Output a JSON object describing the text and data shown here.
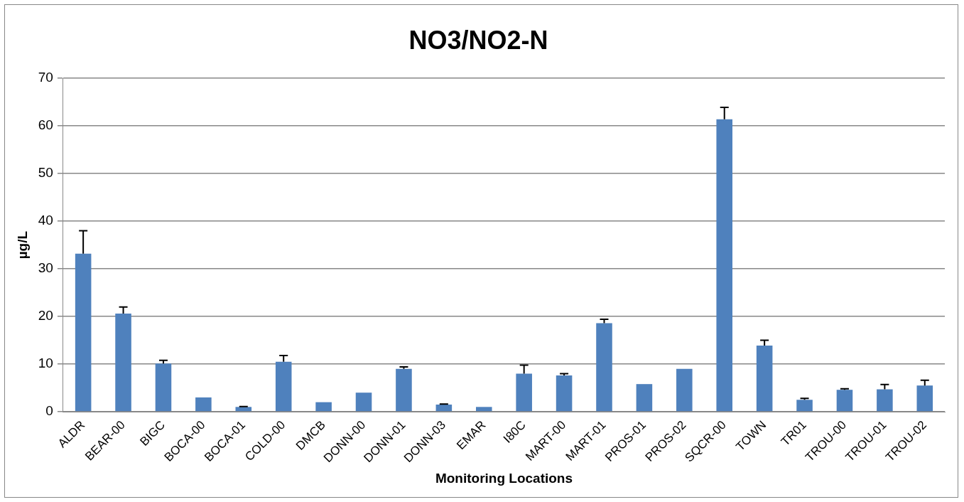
{
  "chart_data": {
    "type": "bar",
    "title": "NO3/NO2-N",
    "xlabel": "Monitoring Locations",
    "ylabel": "µg/L",
    "categories": [
      "ALDR",
      "BEAR-00",
      "BIGC",
      "BOCA-00",
      "BOCA-01",
      "COLD-00",
      "DMCB",
      "DONN-00",
      "DONN-01",
      "DONN-03",
      "EMAR",
      "I80C",
      "MART-00",
      "MART-01",
      "PROS-01",
      "PROS-02",
      "SQCR-00",
      "TOWN",
      "TR01",
      "TROU-00",
      "TROU-01",
      "TROU-02"
    ],
    "values": [
      33.2,
      20.6,
      10.1,
      3.0,
      1.0,
      10.5,
      2.0,
      4.0,
      9.0,
      1.5,
      1.0,
      8.0,
      7.6,
      18.6,
      5.8,
      9.0,
      61.4,
      13.9,
      2.5,
      4.6,
      4.7,
      5.5
    ],
    "errors": [
      [
        33.2,
        38.0
      ],
      [
        20.6,
        22.0
      ],
      [
        10.1,
        10.8
      ],
      null,
      [
        1.0,
        1.1
      ],
      [
        10.5,
        11.8
      ],
      null,
      null,
      [
        9.0,
        9.4
      ],
      [
        1.5,
        1.6
      ],
      null,
      [
        8.0,
        9.8
      ],
      [
        7.6,
        8.0
      ],
      [
        18.6,
        19.4
      ],
      null,
      null,
      [
        61.4,
        63.9
      ],
      [
        13.9,
        15.0
      ],
      [
        2.5,
        2.8
      ],
      [
        4.6,
        4.8
      ],
      [
        4.7,
        5.7
      ],
      [
        5.5,
        6.6
      ]
    ],
    "color": "#4f81bd",
    "ylim": [
      0,
      70
    ],
    "yticks": [
      0,
      10,
      20,
      30,
      40,
      50,
      60,
      70
    ],
    "grid": "y",
    "legend": false
  }
}
